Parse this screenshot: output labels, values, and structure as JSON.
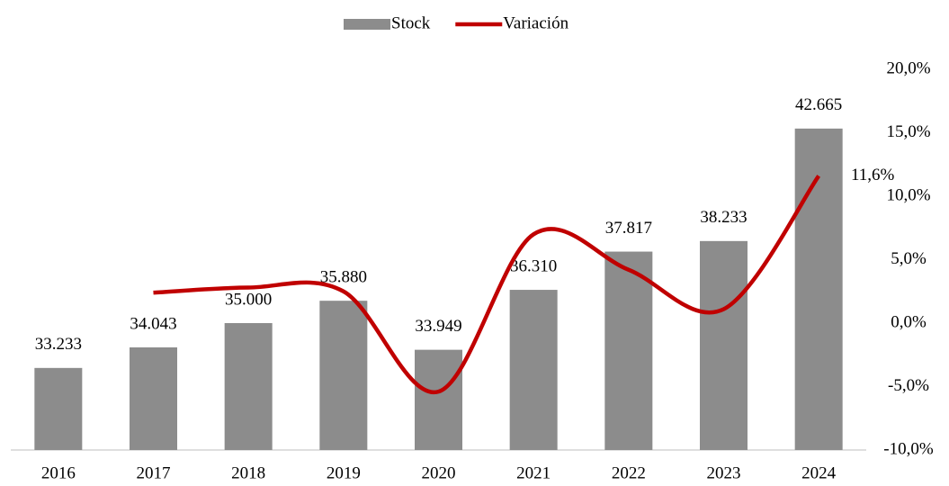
{
  "chart_data": {
    "type": "bar_line",
    "categories": [
      "2016",
      "2017",
      "2018",
      "2019",
      "2020",
      "2021",
      "2022",
      "2023",
      "2024"
    ],
    "series": [
      {
        "name": "Stock",
        "type": "bar",
        "color": "#8c8c8c",
        "values": [
          33233,
          34043,
          35000,
          35880,
          33949,
          36310,
          37817,
          38233,
          42665
        ],
        "value_labels": [
          "33.233",
          "34.043",
          "35.000",
          "35.880",
          "33.949",
          "36.310",
          "37.817",
          "38.233",
          "42.665"
        ]
      },
      {
        "name": "Variación",
        "type": "line",
        "axis": "y2",
        "color": "#c00000",
        "values": [
          null,
          2.4,
          2.8,
          2.5,
          -5.4,
          7.0,
          4.2,
          1.1,
          11.6
        ],
        "value_labels": [
          null,
          null,
          null,
          null,
          null,
          null,
          null,
          null,
          "11,6%"
        ]
      }
    ],
    "ylim": [
      30000,
      45000
    ],
    "y2lim": [
      -10,
      20
    ],
    "y2ticks": [
      {
        "value": -10,
        "label": "-10,0%"
      },
      {
        "value": -5,
        "label": "-5,0%"
      },
      {
        "value": 0,
        "label": "0,0%"
      },
      {
        "value": 5,
        "label": "5,0%"
      },
      {
        "value": 10,
        "label": "10,0%"
      },
      {
        "value": 15,
        "label": "15,0%"
      },
      {
        "value": 20,
        "label": "20,0%"
      }
    ],
    "legend": "top"
  }
}
